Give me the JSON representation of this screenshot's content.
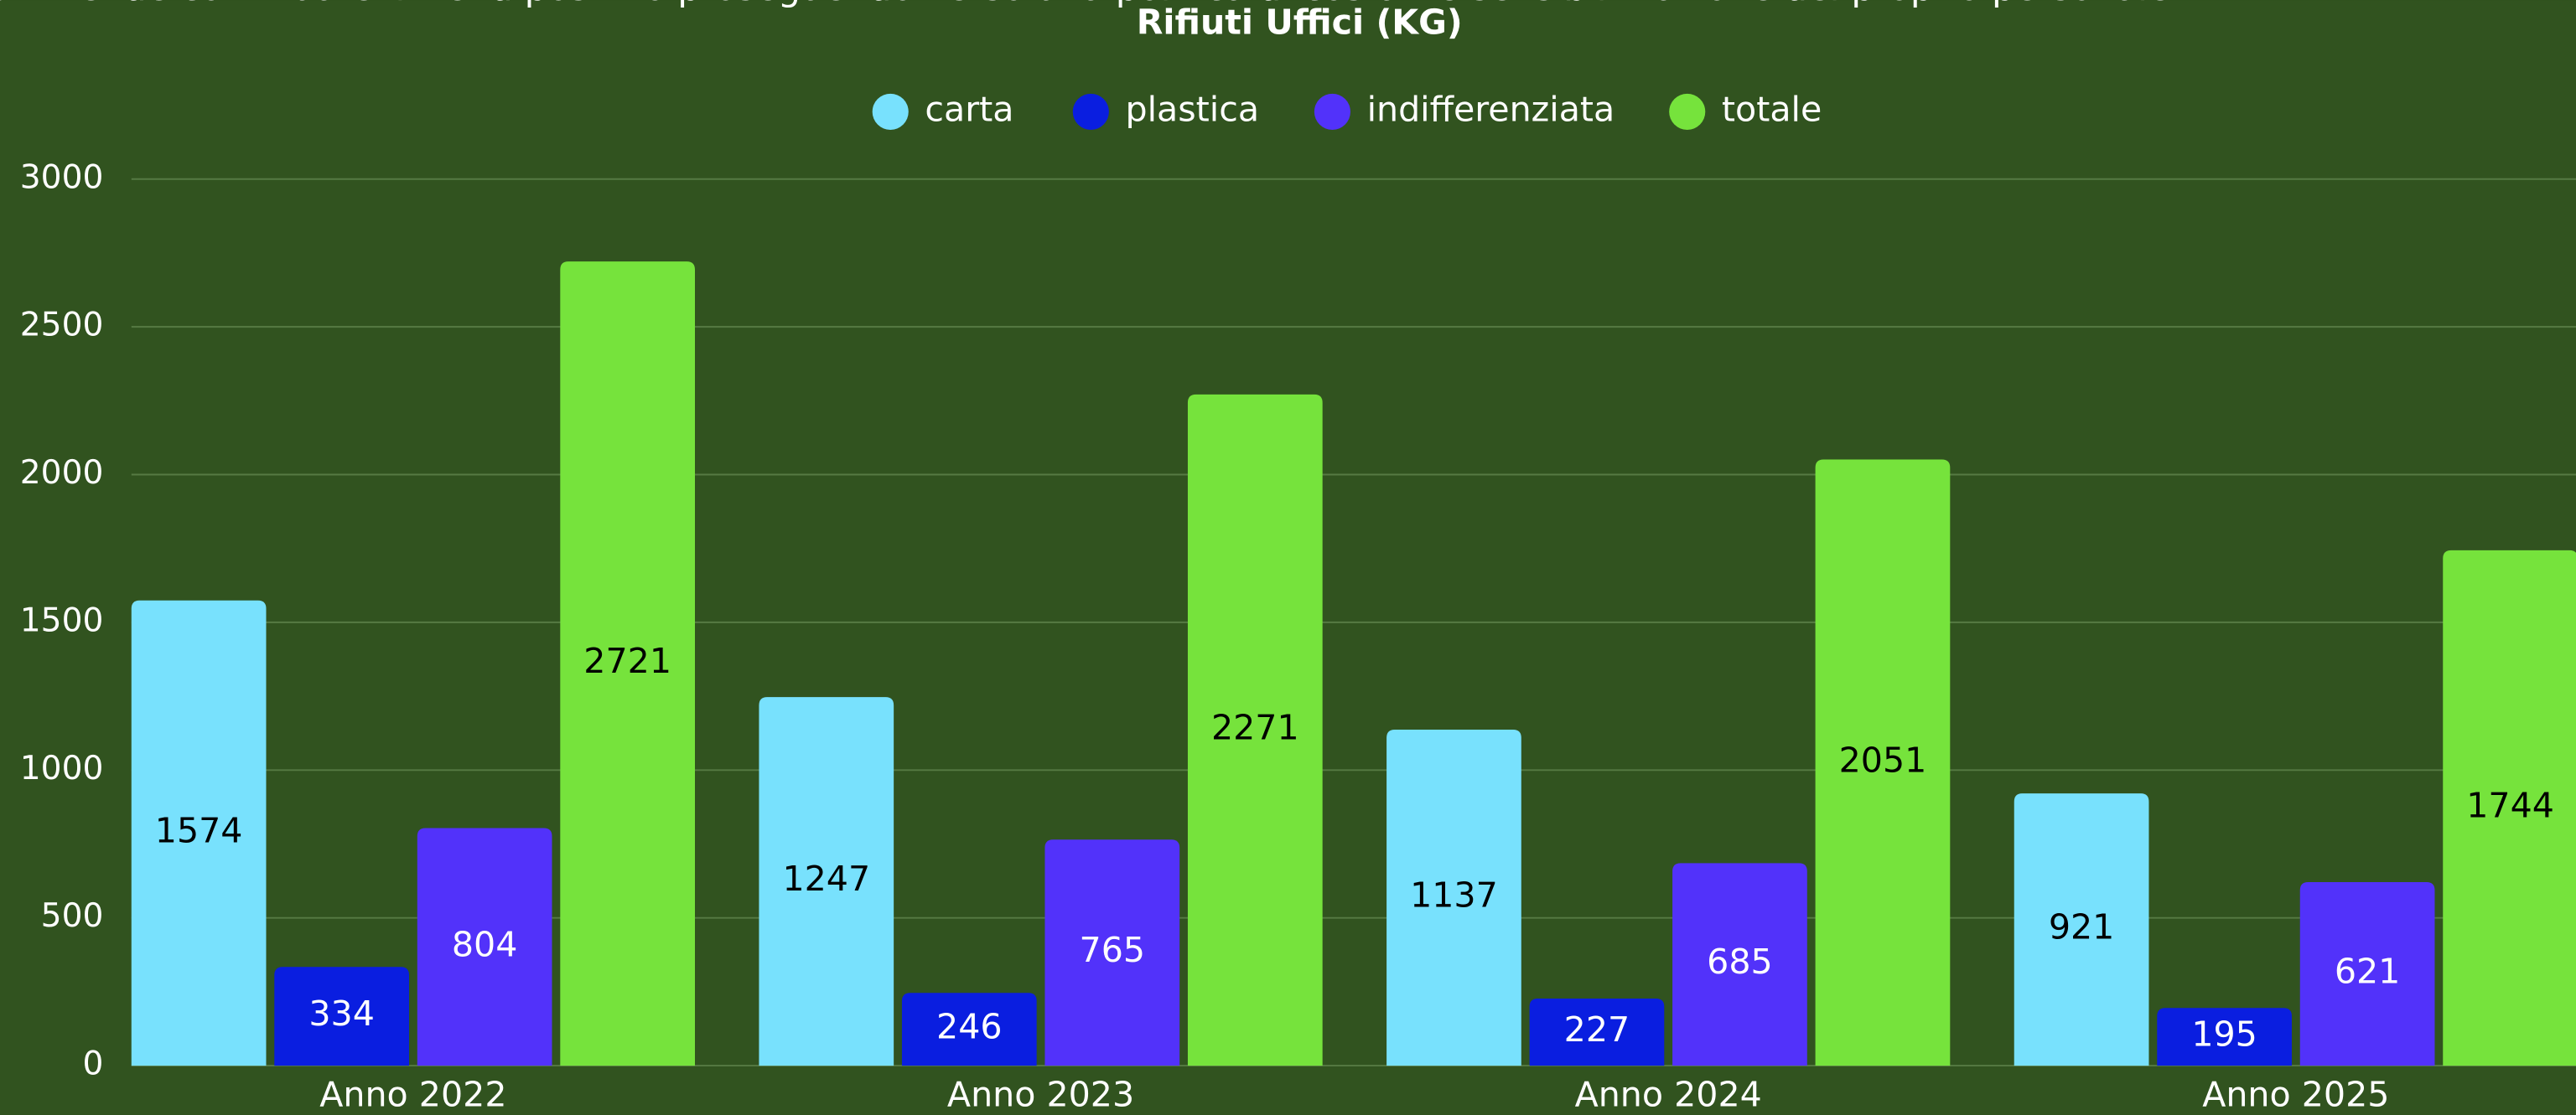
{
  "chart_data": {
    "type": "bar",
    "subtitle": "Si intende continuare il trend positivo proseguendo verso una politica di costante sensibilizzazione del proprio personale.",
    "title": "Rifiuti Uffici (KG)",
    "categories": [
      "Anno 2022",
      "Anno 2023",
      "Anno 2024",
      "Anno 2025"
    ],
    "series": [
      {
        "name": "carta",
        "color": "#78e1fd",
        "values": [
          1574,
          1247,
          1137,
          921
        ]
      },
      {
        "name": "plastica",
        "color": "#0a1ee0",
        "values": [
          334,
          246,
          227,
          195
        ]
      },
      {
        "name": "indifferenziata",
        "color": "#5232fa",
        "values": [
          804,
          765,
          685,
          621
        ]
      },
      {
        "name": "totale",
        "color": "#76e33c",
        "values": [
          2721,
          2271,
          2051,
          1744
        ]
      }
    ],
    "ylim": [
      0,
      3000
    ],
    "yticks": [
      0,
      500,
      1000,
      1500,
      2000,
      2500,
      3000
    ],
    "grid": true,
    "legend": "top"
  }
}
